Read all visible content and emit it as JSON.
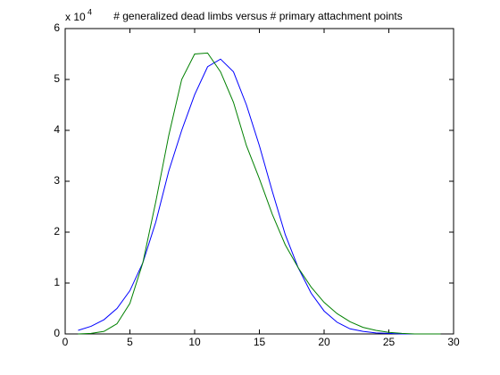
{
  "chart_data": {
    "type": "line",
    "title": "# generalized dead limbs versus # primary attachment points",
    "y_multiplier": "x 10",
    "y_multiplier_exponent": "4",
    "x": [
      1,
      2,
      3,
      4,
      5,
      6,
      7,
      8,
      9,
      10,
      11,
      12,
      13,
      14,
      15,
      16,
      17,
      18,
      19,
      20,
      21,
      22,
      23,
      24,
      25,
      26,
      27,
      28,
      29
    ],
    "series": [
      {
        "name": "blue",
        "color": "#0000ff",
        "values": [
          0.07,
          0.15,
          0.28,
          0.5,
          0.85,
          1.4,
          2.2,
          3.2,
          4.0,
          4.7,
          5.25,
          5.4,
          5.15,
          4.5,
          3.7,
          2.8,
          1.95,
          1.3,
          0.8,
          0.45,
          0.23,
          0.1,
          0.05,
          0.02,
          0.01,
          0,
          0,
          0,
          0
        ]
      },
      {
        "name": "green",
        "color": "#008000",
        "values": [
          0,
          0.01,
          0.05,
          0.2,
          0.6,
          1.4,
          2.6,
          3.9,
          5.0,
          5.5,
          5.52,
          5.15,
          4.55,
          3.7,
          3.05,
          2.35,
          1.75,
          1.3,
          0.92,
          0.62,
          0.4,
          0.24,
          0.13,
          0.07,
          0.03,
          0.01,
          0,
          0,
          0
        ]
      }
    ],
    "xlim": [
      0,
      30
    ],
    "xticks": [
      0,
      5,
      10,
      15,
      20,
      25,
      30
    ],
    "ylim": [
      0,
      6
    ],
    "yticks": [
      0,
      1,
      2,
      3,
      4,
      5,
      6
    ]
  }
}
